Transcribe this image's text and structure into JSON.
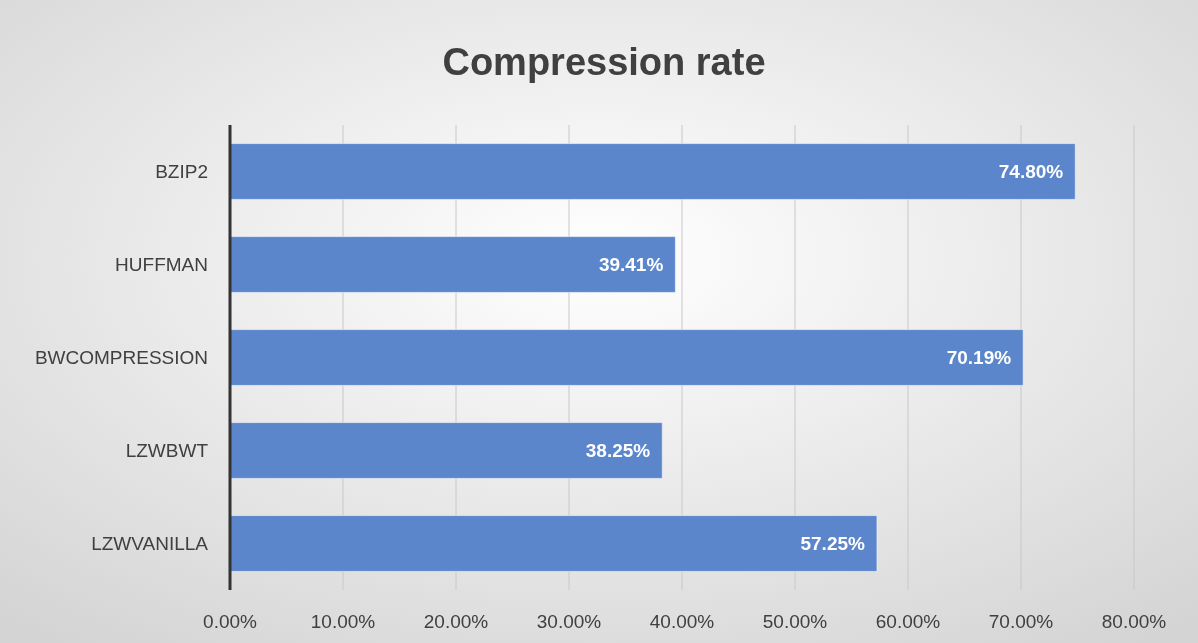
{
  "chart_data": {
    "type": "bar",
    "orientation": "horizontal",
    "title": "Compression rate",
    "categories": [
      "BZIP2",
      "HUFFMAN",
      "BWCOMPRESSION",
      "LZWBWT",
      "LZWVANILLA"
    ],
    "values": [
      74.8,
      39.41,
      70.19,
      38.25,
      57.25
    ],
    "value_labels": [
      "74.80%",
      "39.41%",
      "70.19%",
      "38.25%",
      "57.25%"
    ],
    "color": "#5b86cc",
    "xlim": [
      0,
      80
    ],
    "xticks": [
      {
        "value": 0,
        "label": "0.00%"
      },
      {
        "value": 10,
        "label": "10.00%"
      },
      {
        "value": 20,
        "label": "20.00%"
      },
      {
        "value": 30,
        "label": "30.00%"
      },
      {
        "value": 40,
        "label": "40.00%"
      },
      {
        "value": 50,
        "label": "50.00%"
      },
      {
        "value": 60,
        "label": "60.00%"
      },
      {
        "value": 70,
        "label": "70.00%"
      },
      {
        "value": 80,
        "label": "80.00%"
      }
    ],
    "grid": "x"
  }
}
